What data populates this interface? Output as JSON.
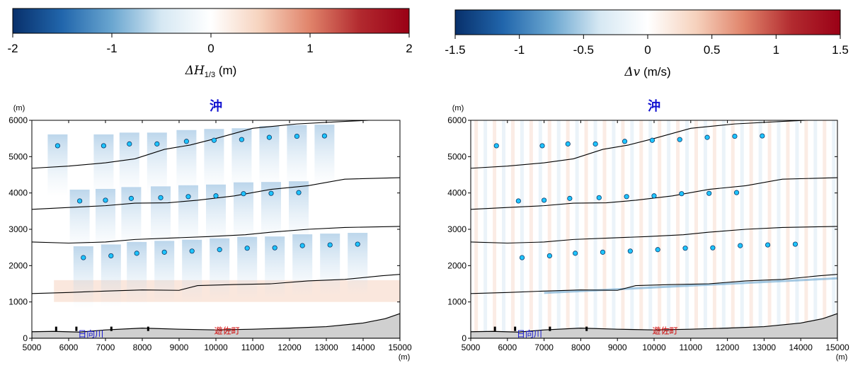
{
  "chart_data": [
    {
      "type": "heatmap",
      "colorbar": {
        "ticks": [
          -2,
          -1,
          0,
          1,
          2
        ],
        "tick_labels": [
          "-2",
          "-1",
          "0",
          "1",
          "2"
        ],
        "label_symbol": "ΔH",
        "label_subscript": "1/3",
        "label_unit": "(m)",
        "colormap": [
          "#08306b",
          "#2166ac",
          "#6aa6d0",
          "#d6e8f3",
          "#ffffff",
          "#f6d2bd",
          "#e0836a",
          "#b22a2f",
          "#9a0016"
        ]
      },
      "map_title": "沖",
      "x_ticks": [
        5000,
        6000,
        7000,
        8000,
        9000,
        10000,
        11000,
        12000,
        13000,
        14000,
        15000
      ],
      "x_unit": "(m)",
      "y_ticks": [
        0,
        1000,
        2000,
        3000,
        4000,
        5000,
        6000
      ],
      "y_unit": "(m)",
      "xlim": [
        5000,
        15000
      ],
      "ylim": [
        0,
        6000
      ],
      "labels": [
        {
          "text": "日向川",
          "x": 6600,
          "y": 120,
          "color": "#1010d0"
        },
        {
          "text": "遊佐町",
          "x": 10300,
          "y": 200,
          "color": "#d00000"
        }
      ]
    },
    {
      "type": "heatmap",
      "colorbar": {
        "ticks": [
          -1.5,
          -1,
          -0.5,
          0,
          0.5,
          1,
          1.5
        ],
        "tick_labels": [
          "-1.5",
          "-1",
          "-0.5",
          "0",
          "0.5",
          "1",
          "1.5"
        ],
        "label_symbol": "Δv",
        "label_subscript": "",
        "label_unit": "(m/s)",
        "colormap": [
          "#08306b",
          "#2166ac",
          "#6aa6d0",
          "#d6e8f3",
          "#ffffff",
          "#f6d2bd",
          "#e0836a",
          "#b22a2f",
          "#9a0016"
        ]
      },
      "map_title": "沖",
      "x_ticks": [
        5000,
        6000,
        7000,
        8000,
        9000,
        10000,
        11000,
        12000,
        13000,
        14000,
        15000
      ],
      "x_unit": "(m)",
      "y_ticks": [
        0,
        1000,
        2000,
        3000,
        4000,
        5000,
        6000
      ],
      "y_unit": "(m)",
      "xlim": [
        5000,
        15000
      ],
      "ylim": [
        0,
        6000
      ],
      "labels": [
        {
          "text": "日向川",
          "x": 6600,
          "y": 120,
          "color": "#1010d0"
        },
        {
          "text": "遊佐町",
          "x": 10300,
          "y": 200,
          "color": "#d00000"
        }
      ]
    }
  ],
  "turbines": [
    {
      "x": 5700,
      "y": 5300
    },
    {
      "x": 6950,
      "y": 5300
    },
    {
      "x": 7650,
      "y": 5350
    },
    {
      "x": 8400,
      "y": 5350
    },
    {
      "x": 9200,
      "y": 5420
    },
    {
      "x": 9950,
      "y": 5450
    },
    {
      "x": 10700,
      "y": 5470
    },
    {
      "x": 11450,
      "y": 5530
    },
    {
      "x": 12200,
      "y": 5560
    },
    {
      "x": 12950,
      "y": 5570
    },
    {
      "x": 6300,
      "y": 3780
    },
    {
      "x": 7000,
      "y": 3800
    },
    {
      "x": 7700,
      "y": 3850
    },
    {
      "x": 8500,
      "y": 3870
    },
    {
      "x": 9250,
      "y": 3900
    },
    {
      "x": 10000,
      "y": 3920
    },
    {
      "x": 10750,
      "y": 3980
    },
    {
      "x": 11500,
      "y": 3990
    },
    {
      "x": 12250,
      "y": 4010
    },
    {
      "x": 6400,
      "y": 2220
    },
    {
      "x": 7150,
      "y": 2270
    },
    {
      "x": 7850,
      "y": 2340
    },
    {
      "x": 8600,
      "y": 2370
    },
    {
      "x": 9350,
      "y": 2400
    },
    {
      "x": 10100,
      "y": 2440
    },
    {
      "x": 10850,
      "y": 2480
    },
    {
      "x": 11600,
      "y": 2490
    },
    {
      "x": 12350,
      "y": 2550
    },
    {
      "x": 13100,
      "y": 2570
    },
    {
      "x": 13850,
      "y": 2590
    }
  ],
  "contours": [
    [
      [
        5000,
        4680
      ],
      [
        6000,
        4740
      ],
      [
        7000,
        4830
      ],
      [
        7800,
        4940
      ],
      [
        8600,
        5200
      ],
      [
        9300,
        5320
      ],
      [
        10000,
        5500
      ],
      [
        11000,
        5780
      ],
      [
        12200,
        5900
      ],
      [
        13500,
        5970
      ],
      [
        15000,
        6040
      ]
    ],
    [
      [
        5000,
        3550
      ],
      [
        6000,
        3600
      ],
      [
        7000,
        3650
      ],
      [
        7800,
        3720
      ],
      [
        8700,
        3730
      ],
      [
        9500,
        3800
      ],
      [
        10500,
        3920
      ],
      [
        11500,
        4100
      ],
      [
        12500,
        4200
      ],
      [
        13500,
        4380
      ],
      [
        15000,
        4420
      ]
    ],
    [
      [
        5000,
        2650
      ],
      [
        6000,
        2620
      ],
      [
        7000,
        2650
      ],
      [
        7800,
        2720
      ],
      [
        8800,
        2760
      ],
      [
        9800,
        2800
      ],
      [
        10800,
        2850
      ],
      [
        11500,
        2920
      ],
      [
        12500,
        3000
      ],
      [
        13500,
        3050
      ],
      [
        15000,
        3080
      ]
    ],
    [
      [
        5000,
        1230
      ],
      [
        6000,
        1260
      ],
      [
        7000,
        1300
      ],
      [
        8000,
        1330
      ],
      [
        9000,
        1320
      ],
      [
        9500,
        1450
      ],
      [
        10500,
        1480
      ],
      [
        11500,
        1500
      ],
      [
        12500,
        1580
      ],
      [
        13500,
        1620
      ],
      [
        14500,
        1720
      ],
      [
        15000,
        1760
      ]
    ]
  ],
  "coast": [
    [
      5000,
      180
    ],
    [
      5600,
      190
    ],
    [
      6300,
      170
    ],
    [
      7000,
      230
    ],
    [
      8000,
      280
    ],
    [
      9000,
      250
    ],
    [
      10000,
      230
    ],
    [
      11000,
      250
    ],
    [
      12000,
      280
    ],
    [
      13000,
      320
    ],
    [
      14000,
      420
    ],
    [
      14600,
      540
    ],
    [
      15000,
      680
    ]
  ],
  "piers": [
    5650,
    6200,
    7150,
    8150
  ]
}
